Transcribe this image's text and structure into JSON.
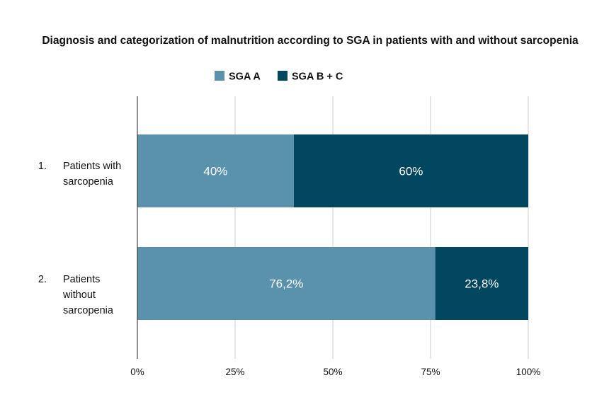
{
  "chart_data": {
    "type": "bar",
    "orientation": "horizontal",
    "stacked": true,
    "title": "Diagnosis and categorization of malnutrition according to SGA in patients with and without sarcopenia",
    "xlabel": "",
    "ylabel": "",
    "xlim": [
      0,
      100
    ],
    "grid": true,
    "legend_position": "top",
    "x_ticks": [
      "0%",
      "25%",
      "50%",
      "75%",
      "100%"
    ],
    "categories": [
      {
        "number": "1.",
        "lines": [
          "Patients with",
          "sarcopenia"
        ]
      },
      {
        "number": "2.",
        "lines": [
          "Patients",
          "without",
          "sarcopenia"
        ]
      }
    ],
    "series": [
      {
        "name": "SGA A",
        "color": "#5a92ae",
        "values": [
          40,
          76.2
        ],
        "labels": [
          "40%",
          "76,2%"
        ]
      },
      {
        "name": "SGA B + C",
        "color": "#034660",
        "values": [
          60,
          23.8
        ],
        "labels": [
          "60%",
          "23,8%"
        ]
      }
    ]
  }
}
